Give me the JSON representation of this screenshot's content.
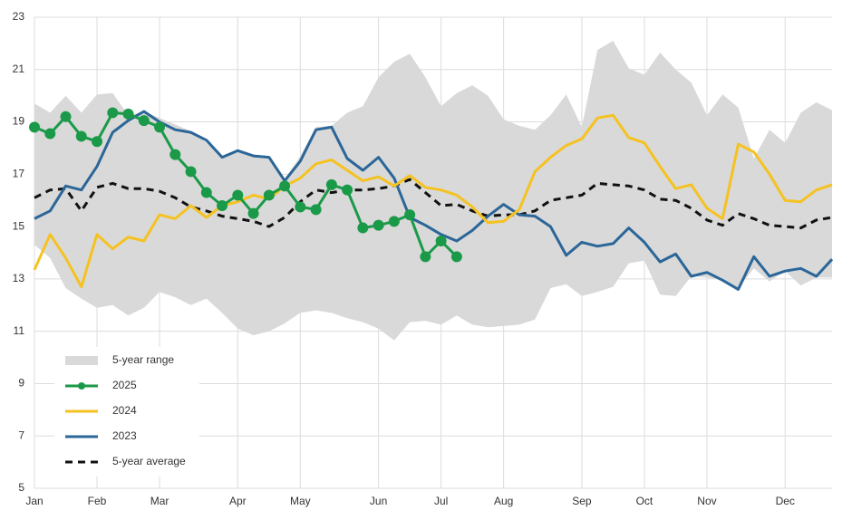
{
  "chart_data": {
    "type": "line",
    "categories": [
      "Jan",
      null,
      null,
      null,
      "Feb",
      null,
      null,
      null,
      "Mar",
      null,
      null,
      null,
      null,
      "Apr",
      null,
      null,
      null,
      "May",
      null,
      null,
      null,
      null,
      "Jun",
      null,
      null,
      null,
      "Jul",
      null,
      null,
      null,
      "Aug",
      null,
      null,
      null,
      null,
      "Sep",
      null,
      null,
      null,
      "Oct",
      null,
      null,
      null,
      "Nov",
      null,
      null,
      null,
      null,
      "Dec",
      null,
      null,
      null
    ],
    "ylim": [
      5,
      23
    ],
    "yticks": [
      5,
      7,
      9,
      11,
      13,
      15,
      17,
      19,
      21,
      23
    ],
    "grid": true,
    "legend": "lower left",
    "range": {
      "name": "5-year range",
      "color": "#d9d9d9",
      "high": [
        19.7,
        19.35,
        20,
        19.35,
        20.05,
        20.1,
        19.25,
        19.4,
        19.15,
        18.9,
        18.65,
        18.2,
        17.65,
        17.9,
        17.75,
        17.7,
        16.8,
        17.7,
        18.8,
        18.85,
        19.35,
        19.6,
        20.7,
        21.3,
        21.6,
        20.7,
        19.6,
        20.1,
        20.4,
        20,
        19.1,
        18.85,
        18.7,
        19.25,
        20.05,
        18.8,
        21.75,
        22.1,
        21.05,
        20.8,
        21.65,
        21,
        20.5,
        19.25,
        20.05,
        19.55,
        17.6,
        18.7,
        18.2,
        19.35,
        19.75,
        19.45
      ],
      "low": [
        14.3,
        13.8,
        12.65,
        12.25,
        11.9,
        12,
        11.6,
        11.9,
        12.5,
        12.3,
        12,
        12.25,
        11.7,
        11.1,
        10.85,
        11,
        11.3,
        11.7,
        11.8,
        11.7,
        11.5,
        11.35,
        11.1,
        10.65,
        11.35,
        11.4,
        11.25,
        11.6,
        11.25,
        11.15,
        11.2,
        11.25,
        11.45,
        12.65,
        12.8,
        12.35,
        12.5,
        12.7,
        13.6,
        13.7,
        12.4,
        12.35,
        13.1,
        13.05,
        12.95,
        12.65,
        13.4,
        12.9,
        13.3,
        12.75,
        13.05,
        13.05
      ]
    },
    "series": [
      {
        "name": "2025",
        "color": "#1a9a48",
        "markers": true,
        "values": [
          18.8,
          18.55,
          19.2,
          18.45,
          18.25,
          19.35,
          19.3,
          19.05,
          18.8,
          17.75,
          17.1,
          16.3,
          15.8,
          16.2,
          15.5,
          16.2,
          16.55,
          15.75,
          15.65,
          16.6,
          16.4,
          14.95,
          15.05,
          15.2,
          15.45,
          13.85,
          14.45,
          13.85,
          null,
          null,
          null,
          null,
          null,
          null,
          null,
          null,
          null,
          null,
          null,
          null,
          null,
          null,
          null,
          null,
          null,
          null,
          null,
          null,
          null,
          null,
          null,
          null
        ]
      },
      {
        "name": "2024",
        "color": "#f5c220",
        "values": [
          13.35,
          14.7,
          13.8,
          12.7,
          14.7,
          14.15,
          14.6,
          14.45,
          15.45,
          15.3,
          15.8,
          15.35,
          15.8,
          15.95,
          16.2,
          16.05,
          16.55,
          16.85,
          17.4,
          17.55,
          17.15,
          16.75,
          16.9,
          16.55,
          16.95,
          16.5,
          16.4,
          16.2,
          15.75,
          15.15,
          15.2,
          15.65,
          17.1,
          17.65,
          18.1,
          18.35,
          19.15,
          19.25,
          18.4,
          18.2,
          17.3,
          16.45,
          16.6,
          15.7,
          15.3,
          18.15,
          17.85,
          17,
          16,
          15.95,
          16.4,
          16.6
        ]
      },
      {
        "name": "2023",
        "color": "#2b6698",
        "values": [
          15.3,
          15.6,
          16.55,
          16.4,
          17.3,
          18.6,
          19.05,
          19.4,
          19,
          18.7,
          18.6,
          18.3,
          17.65,
          17.9,
          17.7,
          17.65,
          16.75,
          17.5,
          18.7,
          18.8,
          17.6,
          17.15,
          17.65,
          16.85,
          15.35,
          15.05,
          14.7,
          14.45,
          14.85,
          15.4,
          15.85,
          15.45,
          15.4,
          15,
          13.9,
          14.4,
          14.25,
          14.35,
          14.95,
          14.4,
          13.65,
          13.95,
          13.1,
          13.25,
          12.95,
          12.6,
          13.85,
          13.1,
          13.3,
          13.4,
          13.1,
          13.75
        ]
      },
      {
        "name": "5-year average",
        "color": "#111111",
        "style": "dashed",
        "values": [
          16.1,
          16.4,
          16.45,
          15.6,
          16.5,
          16.65,
          16.45,
          16.45,
          16.35,
          16.1,
          15.75,
          15.6,
          15.4,
          15.3,
          15.2,
          15,
          15.35,
          15.95,
          16.4,
          16.3,
          16.4,
          16.4,
          16.45,
          16.55,
          16.8,
          16.3,
          15.8,
          15.85,
          15.6,
          15.4,
          15.45,
          15.45,
          15.6,
          16,
          16.1,
          16.2,
          16.65,
          16.6,
          16.55,
          16.4,
          16.05,
          16,
          15.7,
          15.25,
          15.05,
          15.5,
          15.3,
          15.05,
          15,
          14.95,
          15.25,
          15.35
        ]
      }
    ]
  }
}
